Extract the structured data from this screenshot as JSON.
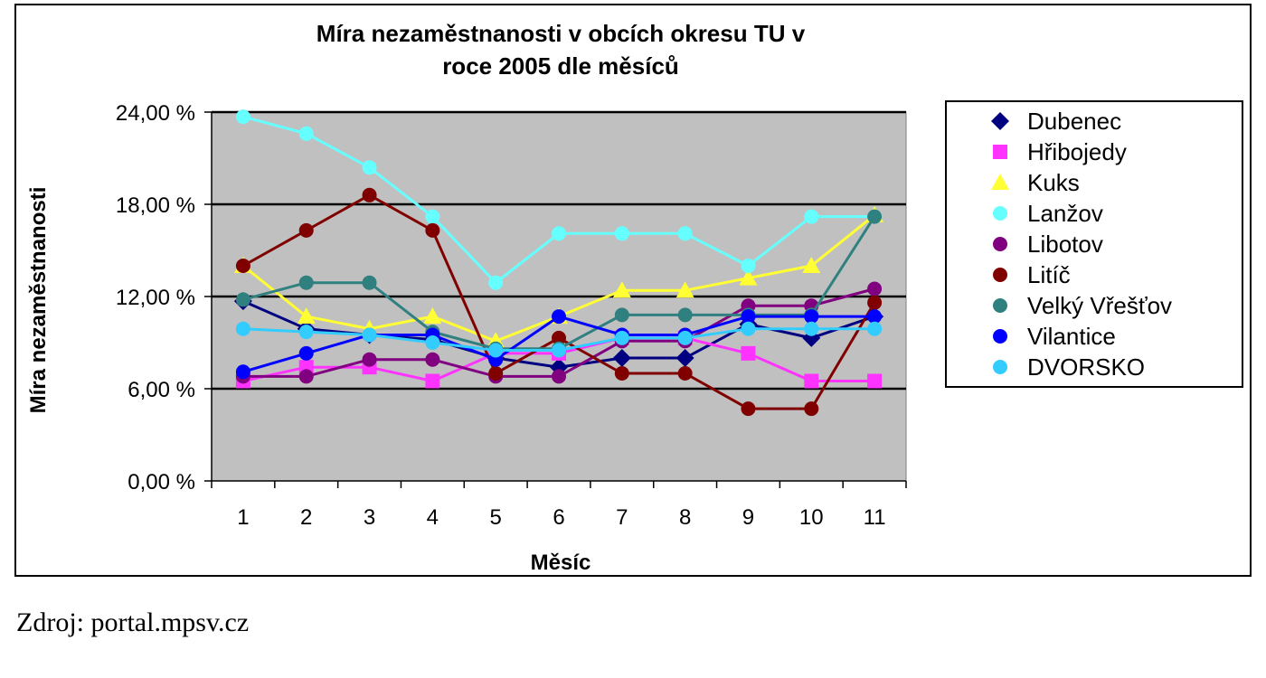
{
  "source_note": "Zdroj: portal.mpsv.cz",
  "chart_data": {
    "type": "line",
    "title_lines": [
      "Míra nezaměstnanosti v obcích okresu TU v",
      "roce 2005 dle měsíců"
    ],
    "xlabel": "Měsíc",
    "ylabel": "Míra nezaměstnanosti",
    "categories": [
      "1",
      "2",
      "3",
      "4",
      "5",
      "6",
      "7",
      "8",
      "9",
      "10",
      "11"
    ],
    "ylim": [
      0,
      24
    ],
    "yticks": [
      0,
      6,
      12,
      18,
      24
    ],
    "ytick_labels": [
      "0,00 %",
      "6,00 %",
      "12,00 %",
      "18,00 %",
      "24,00 %"
    ],
    "grid": "horizontal",
    "legend_position": "right",
    "plot_background": "#c0c0c0",
    "series": [
      {
        "name": "Dubenec",
        "color": "#000080",
        "marker": "diamond",
        "values": [
          11.7,
          9.9,
          9.5,
          9.2,
          8.0,
          7.4,
          8.0,
          8.0,
          10.2,
          9.3,
          10.7
        ]
      },
      {
        "name": "Hřibojedy",
        "color": "#ff33ff",
        "marker": "square",
        "values": [
          6.5,
          7.4,
          7.4,
          6.5,
          8.3,
          8.3,
          9.3,
          9.3,
          8.3,
          6.5,
          6.5
        ]
      },
      {
        "name": "Kuks",
        "color": "#ffff33",
        "marker": "triangle",
        "values": [
          14.0,
          10.7,
          9.9,
          10.7,
          9.1,
          10.7,
          12.4,
          12.4,
          13.2,
          14.0,
          17.3
        ]
      },
      {
        "name": "Lanžov",
        "color": "#66ffff",
        "marker": "circle",
        "values": [
          23.7,
          22.6,
          20.4,
          17.2,
          12.9,
          16.1,
          16.1,
          16.1,
          14.0,
          17.2,
          17.2
        ]
      },
      {
        "name": "Libotov",
        "color": "#800080",
        "marker": "circle",
        "values": [
          6.8,
          6.8,
          7.9,
          7.9,
          6.8,
          6.8,
          9.1,
          9.1,
          11.4,
          11.4,
          12.5
        ]
      },
      {
        "name": "Litíč",
        "color": "#800000",
        "marker": "circle",
        "values": [
          14.0,
          16.3,
          18.6,
          16.3,
          7.0,
          9.3,
          7.0,
          7.0,
          4.7,
          4.7,
          11.6
        ]
      },
      {
        "name": "Velký Vřešťov",
        "color": "#308080",
        "marker": "circle",
        "values": [
          11.8,
          12.9,
          12.9,
          9.7,
          8.6,
          8.6,
          10.8,
          10.8,
          10.8,
          10.8,
          17.2
        ]
      },
      {
        "name": "Vilantice",
        "color": "#0000ff",
        "marker": "circle",
        "values": [
          7.1,
          8.3,
          9.5,
          9.5,
          7.9,
          10.7,
          9.5,
          9.5,
          10.7,
          10.7,
          10.7
        ]
      },
      {
        "name": "DVORSKO",
        "color": "#33ccff",
        "marker": "circle",
        "values": [
          9.9,
          9.7,
          9.5,
          9.0,
          8.5,
          8.5,
          9.3,
          9.3,
          9.9,
          9.9,
          9.9
        ]
      }
    ]
  }
}
